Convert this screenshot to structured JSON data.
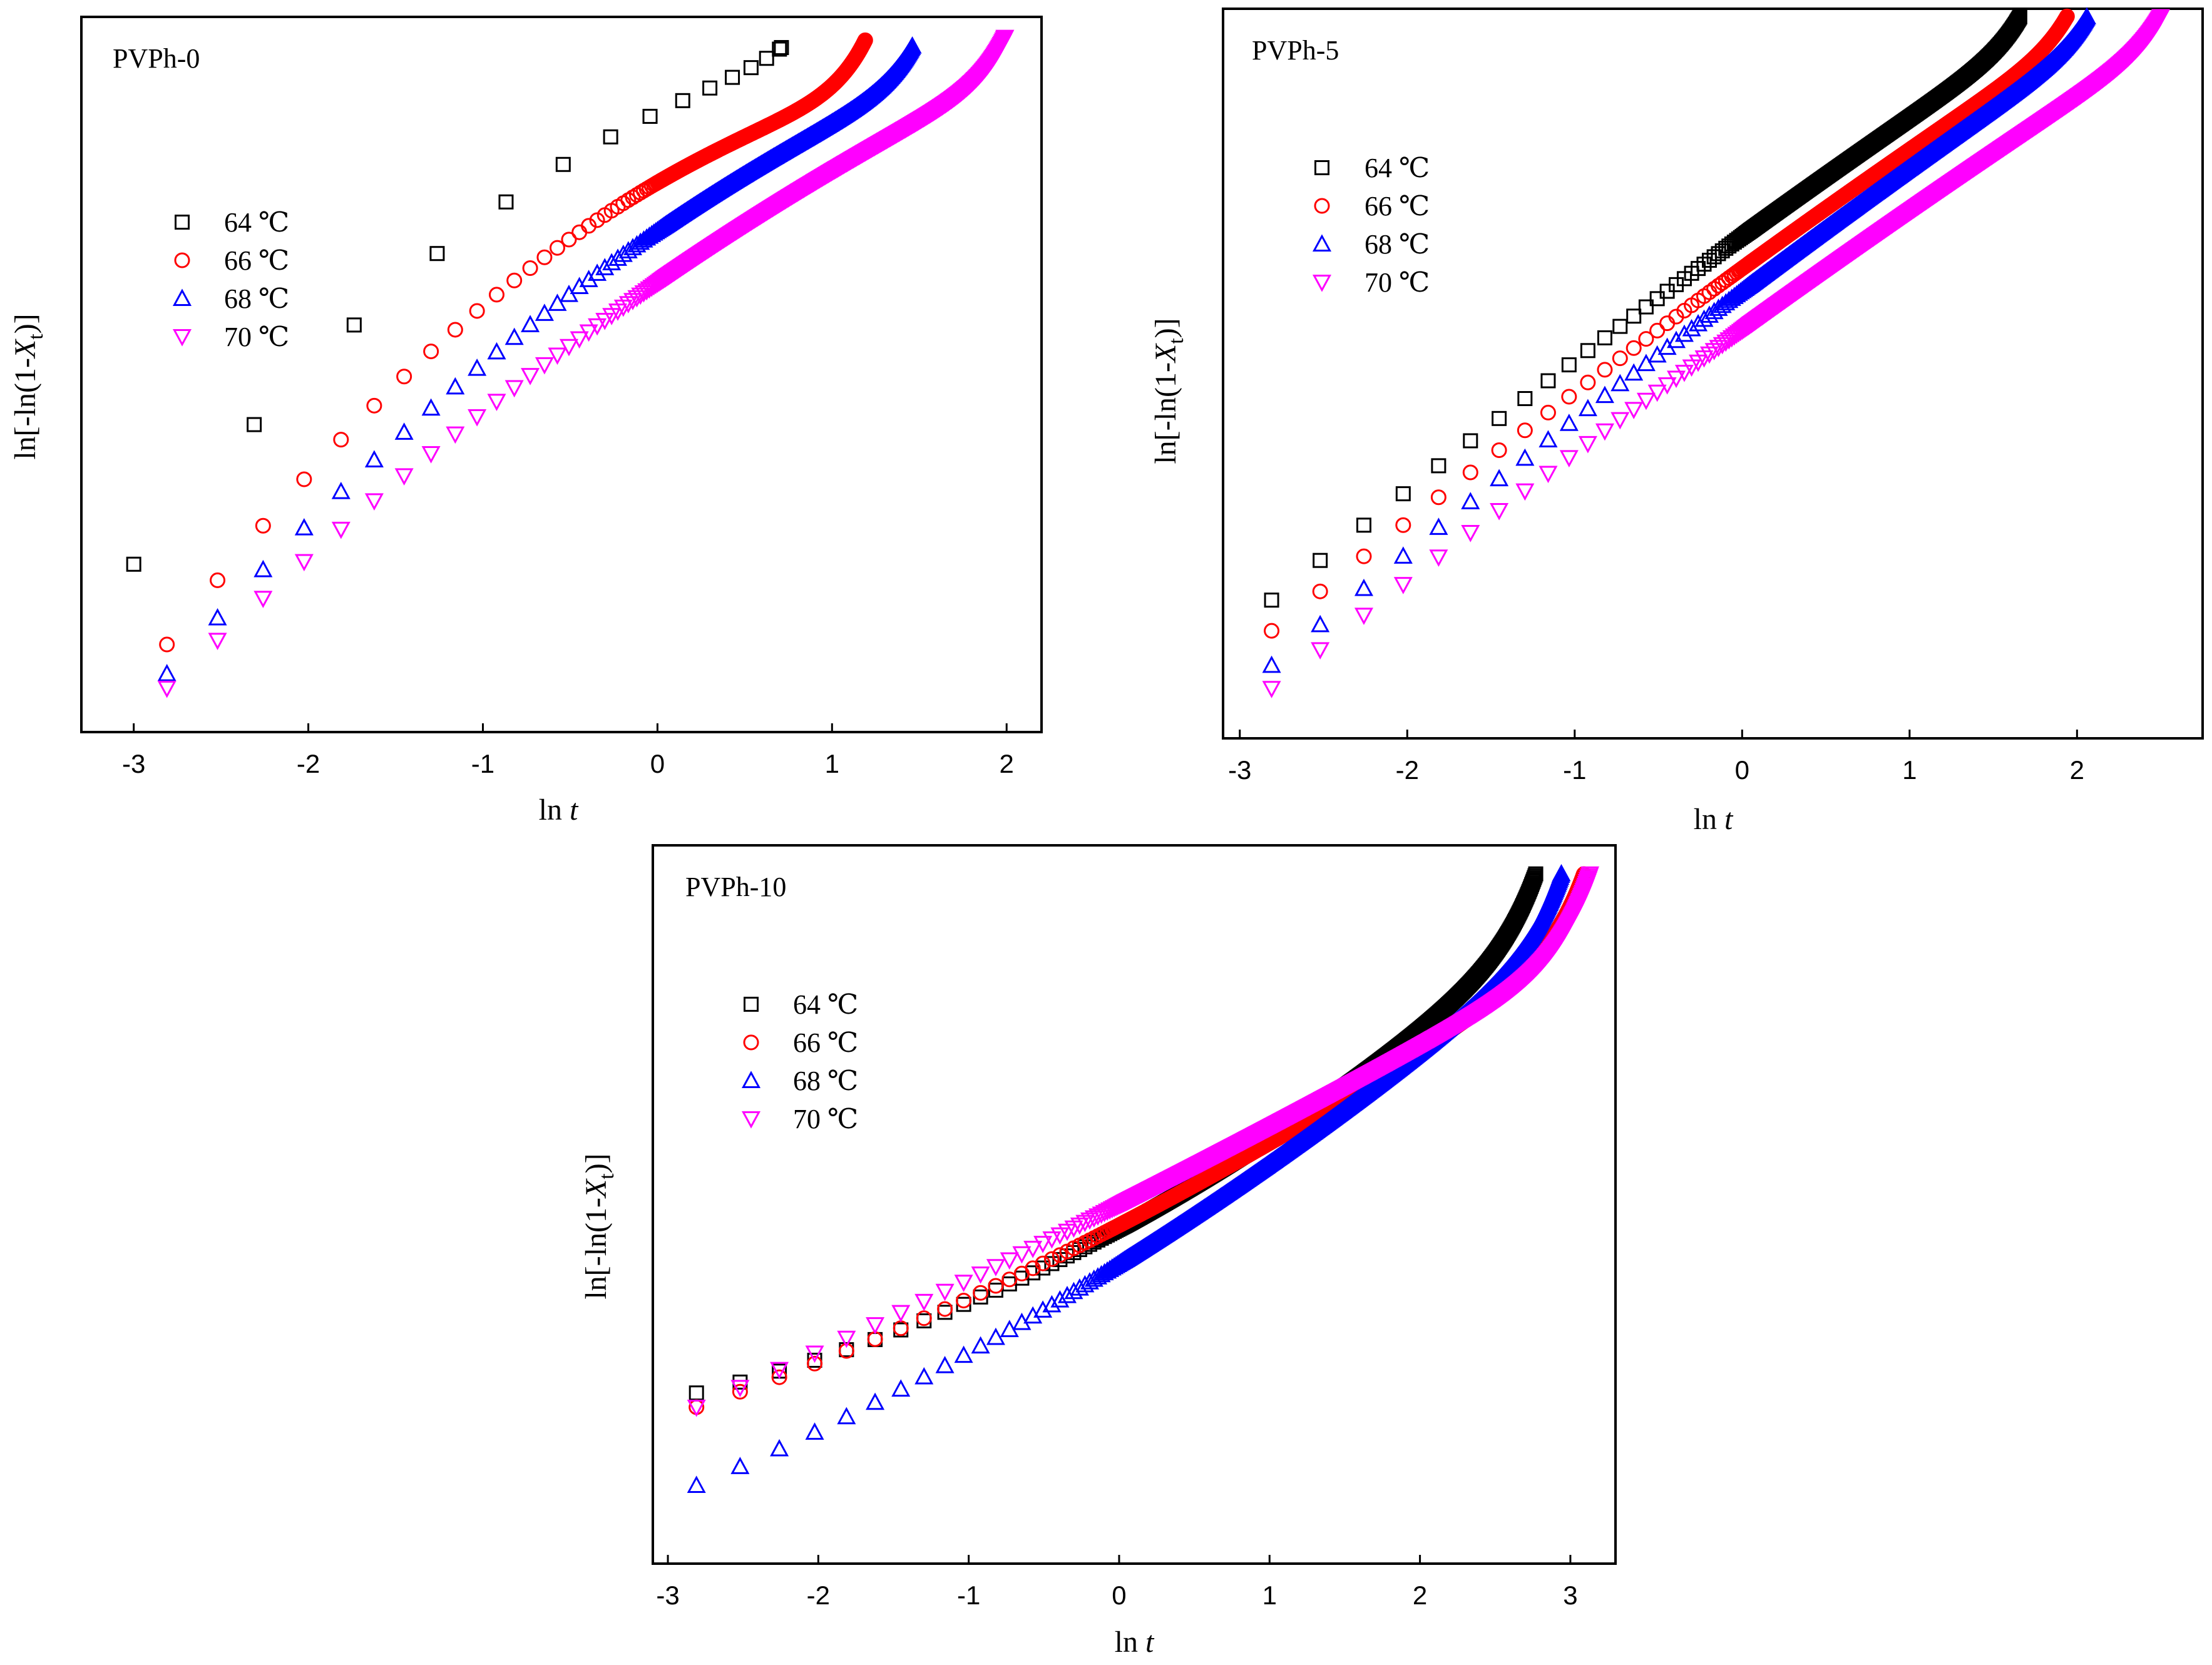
{
  "figure": {
    "x_label_main": "ln ",
    "x_label_italic": "t",
    "y_label_prefix": "ln[-ln(1-",
    "y_label_italic": "X",
    "y_label_sub": "t",
    "y_label_suffix": ")]",
    "legend_unit": "℃",
    "series_styles": [
      {
        "temp": "64",
        "marker": "square",
        "color": "#000000"
      },
      {
        "temp": "66",
        "marker": "circle",
        "color": "#ff0000"
      },
      {
        "temp": "68",
        "marker": "triangle-up",
        "color": "#0000ff"
      },
      {
        "temp": "70",
        "marker": "triangle-down",
        "color": "#ff00ff"
      }
    ]
  },
  "chart_data": [
    {
      "type": "scatter",
      "title": "PVPh-0",
      "xlabel": "ln t",
      "ylabel": "ln[-ln(1-Xt)]",
      "xlim": [
        -3.3,
        2.2
      ],
      "ylim": [
        -7.2,
        2.6
      ],
      "xticks": [
        -3,
        -2,
        -1,
        0,
        1,
        2
      ],
      "xtick_labels": [
        "-3",
        "-2",
        "-1",
        "0",
        "1",
        "2"
      ],
      "series": [
        {
          "name": "64 ℃",
          "x_start": -3.0,
          "x_end": 0.71,
          "step_start": 0.69,
          "ratio": 0.83,
          "y_start": -4.9,
          "y_end": 2.18,
          "curvature": 0.3,
          "tail": 0.25,
          "tail_width": 0.2
        },
        {
          "name": "66 ℃",
          "x_start": -2.81,
          "x_end": 1.19,
          "step_start": 0.29,
          "ratio": 0.9,
          "y_start": -6.0,
          "y_end": 2.28,
          "curvature": 0.3,
          "tail": 0.75,
          "tail_width": 0.18
        },
        {
          "name": "68 ℃",
          "x_start": -2.81,
          "x_end": 1.46,
          "step_start": 0.29,
          "ratio": 0.9,
          "y_start": -6.4,
          "y_end": 2.2,
          "curvature": 0.2,
          "tail": 0.55,
          "tail_width": 0.17
        },
        {
          "name": "70 ℃",
          "x_start": -2.81,
          "x_end": 1.99,
          "step_start": 0.29,
          "ratio": 0.9,
          "y_start": -6.6,
          "y_end": 2.32,
          "curvature": 0.15,
          "tail": 0.55,
          "tail_width": 0.15
        }
      ]
    },
    {
      "type": "scatter",
      "title": "PVPh-5",
      "xlabel": "ln t",
      "ylabel": "ln[-ln(1-Xt)]",
      "xlim": [
        -3.1,
        2.75
      ],
      "ylim": [
        -8.5,
        1.0
      ],
      "xticks": [
        -3,
        -2,
        -1,
        0,
        1,
        2
      ],
      "xtick_labels": [
        "-3",
        "-2",
        "-1",
        "0",
        "1",
        "2"
      ],
      "series": [
        {
          "name": "64 ℃",
          "x_start": -2.81,
          "x_end": 1.66,
          "step_start": 0.29,
          "ratio": 0.9,
          "y_start": -6.7,
          "y_end": 0.9,
          "curvature": 0.05,
          "tail": 0.35,
          "tail_width": 0.15
        },
        {
          "name": "66 ℃",
          "x_start": -2.81,
          "x_end": 1.94,
          "step_start": 0.29,
          "ratio": 0.9,
          "y_start": -7.1,
          "y_end": 0.9,
          "curvature": 0.05,
          "tail": 0.35,
          "tail_width": 0.15
        },
        {
          "name": "68 ℃",
          "x_start": -2.81,
          "x_end": 2.06,
          "step_start": 0.29,
          "ratio": 0.9,
          "y_start": -7.55,
          "y_end": 0.9,
          "curvature": 0.05,
          "tail": 0.35,
          "tail_width": 0.15
        },
        {
          "name": "70 ℃",
          "x_start": -2.81,
          "x_end": 2.5,
          "step_start": 0.29,
          "ratio": 0.9,
          "y_start": -7.85,
          "y_end": 0.9,
          "curvature": 0.05,
          "tail": 0.35,
          "tail_width": 0.15
        }
      ]
    },
    {
      "type": "scatter",
      "title": "PVPh-10",
      "xlabel": "ln t",
      "ylabel": "ln[-ln(1-Xt)]",
      "xlim": [
        -3.1,
        3.3
      ],
      "ylim": [
        -8.2,
        1.9
      ],
      "xticks": [
        -3,
        -2,
        -1,
        0,
        1,
        2,
        3
      ],
      "xtick_labels": [
        "-3",
        "-2",
        "-1",
        "0",
        "1",
        "2",
        "3"
      ],
      "series": [
        {
          "name": "64 ℃",
          "x_start": -2.81,
          "x_end": 2.77,
          "step_start": 0.29,
          "ratio": 0.9,
          "y_start": -5.8,
          "y_end": 1.5,
          "curvature": -0.25,
          "tail": 0.9,
          "tail_width": 0.22
        },
        {
          "name": "66 ℃",
          "x_start": -2.81,
          "x_end": 3.09,
          "step_start": 0.29,
          "ratio": 0.9,
          "y_start": -6.0,
          "y_end": 1.5,
          "curvature": -0.15,
          "tail": 0.95,
          "tail_width": 0.22
        },
        {
          "name": "68 ℃",
          "x_start": -2.81,
          "x_end": 2.94,
          "step_start": 0.29,
          "ratio": 0.9,
          "y_start": -7.1,
          "y_end": 1.5,
          "curvature": -0.15,
          "tail": 0.9,
          "tail_width": 0.22
        },
        {
          "name": "70 ℃",
          "x_start": -2.81,
          "x_end": 3.13,
          "step_start": 0.29,
          "ratio": 0.9,
          "y_start": -6.0,
          "y_end": 1.5,
          "curvature": -0.05,
          "tail": 1.1,
          "tail_width": 0.22
        }
      ]
    }
  ]
}
